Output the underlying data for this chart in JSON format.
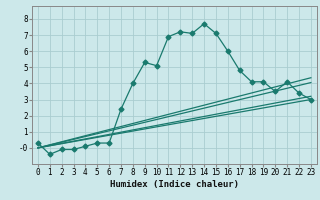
{
  "xlabel": "Humidex (Indice chaleur)",
  "bg_color": "#cce8ea",
  "grid_color": "#aacdd0",
  "line_color": "#1a7a6e",
  "marker_color": "#1a7a6e",
  "xlim": [
    -0.5,
    23.5
  ],
  "ylim": [
    -1.0,
    8.8
  ],
  "xticks": [
    0,
    1,
    2,
    3,
    4,
    5,
    6,
    7,
    8,
    9,
    10,
    11,
    12,
    13,
    14,
    15,
    16,
    17,
    18,
    19,
    20,
    21,
    22,
    23
  ],
  "yticks": [
    0,
    1,
    2,
    3,
    4,
    5,
    6,
    7,
    8
  ],
  "ytick_labels": [
    "-0",
    "1",
    "2",
    "3",
    "4",
    "5",
    "6",
    "7",
    "8"
  ],
  "curve1_x": [
    0,
    1,
    2,
    3,
    4,
    5,
    6,
    7,
    8,
    9,
    10,
    11,
    12,
    13,
    14,
    15,
    16,
    17,
    18,
    19,
    20,
    21,
    22,
    23
  ],
  "curve1_y": [
    0.3,
    -0.4,
    -0.1,
    -0.1,
    0.1,
    0.3,
    0.3,
    2.4,
    4.0,
    5.3,
    5.1,
    6.9,
    7.2,
    7.1,
    7.7,
    7.1,
    6.0,
    4.8,
    4.1,
    4.1,
    3.5,
    4.1,
    3.4,
    3.0
  ],
  "curve2_x": [
    0,
    23
  ],
  "curve2_y": [
    0.0,
    3.0
  ],
  "curve3_x": [
    0,
    23
  ],
  "curve3_y": [
    0.0,
    3.2
  ],
  "curve4_x": [
    0,
    23
  ],
  "curve4_y": [
    0.0,
    4.05
  ],
  "curve5_x": [
    0,
    23
  ],
  "curve5_y": [
    0.0,
    4.35
  ]
}
